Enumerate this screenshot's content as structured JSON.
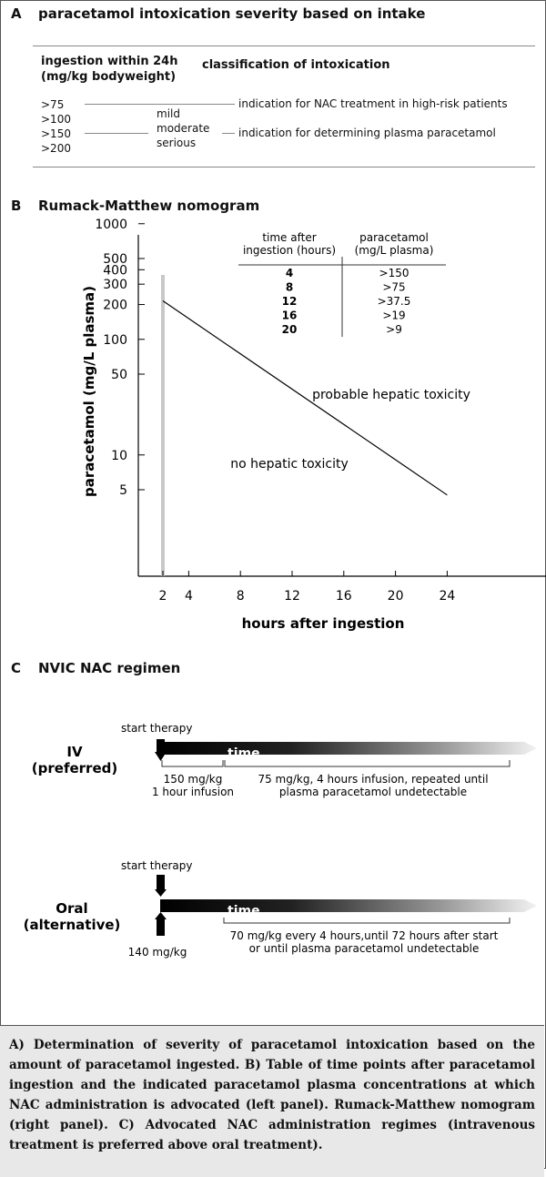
{
  "panel_a": {
    "letter": "A",
    "title": "paracetamol intoxication severity based on intake",
    "col1_header_line1": "ingestion within 24h",
    "col1_header_line2": "(mg/kg bodyweight)",
    "col2_header": "classification of intoxication",
    "rows": [
      ">75",
      ">100",
      ">150",
      ">200"
    ],
    "classes": [
      "mild",
      "moderate",
      "serious"
    ],
    "notes": [
      "indication for NAC treatment in high-risk patients",
      "indication for determining plasma paracetamol"
    ]
  },
  "panel_b": {
    "letter": "B",
    "title": "Rumack-Matthew nomogram",
    "table": {
      "header_time": [
        "time after",
        "ingestion (hours)"
      ],
      "header_conc": [
        "paracetamol",
        "(mg/L plasma)"
      ],
      "times": [
        "4",
        "8",
        "12",
        "16",
        "20"
      ],
      "concs": [
        ">150",
        ">75",
        ">37.5",
        ">19",
        ">9"
      ]
    }
  },
  "chart_data": {
    "type": "line",
    "title": "",
    "xlabel": "hours after ingestion",
    "ylabel": "paracetamol (mg/L plasma)",
    "x_ticks": [
      2,
      4,
      8,
      12,
      16,
      20,
      24
    ],
    "y_ticks": [
      5,
      10,
      50,
      100,
      200,
      300,
      400,
      500,
      1000
    ],
    "y_scale": "log",
    "series": [
      {
        "x": [
          2,
          24
        ],
        "y": [
          215,
          4.5
        ]
      }
    ],
    "marker_line_x": 2,
    "annotations": [
      "probable hepatic toxicity",
      "no hepatic toxicity"
    ]
  },
  "panel_c": {
    "letter": "C",
    "title": "NVIC NAC regimen",
    "iv": {
      "label_line1": "IV",
      "label_line2": "(preferred)",
      "start": "start therapy",
      "time": "time",
      "dose1_line1": "150 mg/kg",
      "dose1_line2": "1 hour infusion",
      "dose2_line1": "75 mg/kg, 4 hours infusion, repeated until",
      "dose2_line2": "plasma paracetamol undetectable"
    },
    "oral": {
      "label_line1": "Oral",
      "label_line2": "(alternative)",
      "start": "start therapy",
      "time": "time",
      "dose1": "140 mg/kg",
      "dose2_line1": "70 mg/kg every 4 hours,until 72 hours after start",
      "dose2_line2": "or until plasma paracetamol undetectable"
    }
  },
  "caption": "A) Determination of severity of paracetamol intoxication based on the amount of paracetamol ingested. B) Table of time points after paracetamol ingestion and the indicated paracetamol plasma concentrations at which NAC administration is advocated (left panel). Rumack-Matthew nomogram (right panel). C) Advocated NAC administration regimes (intravenous treatment is preferred above oral treatment)."
}
